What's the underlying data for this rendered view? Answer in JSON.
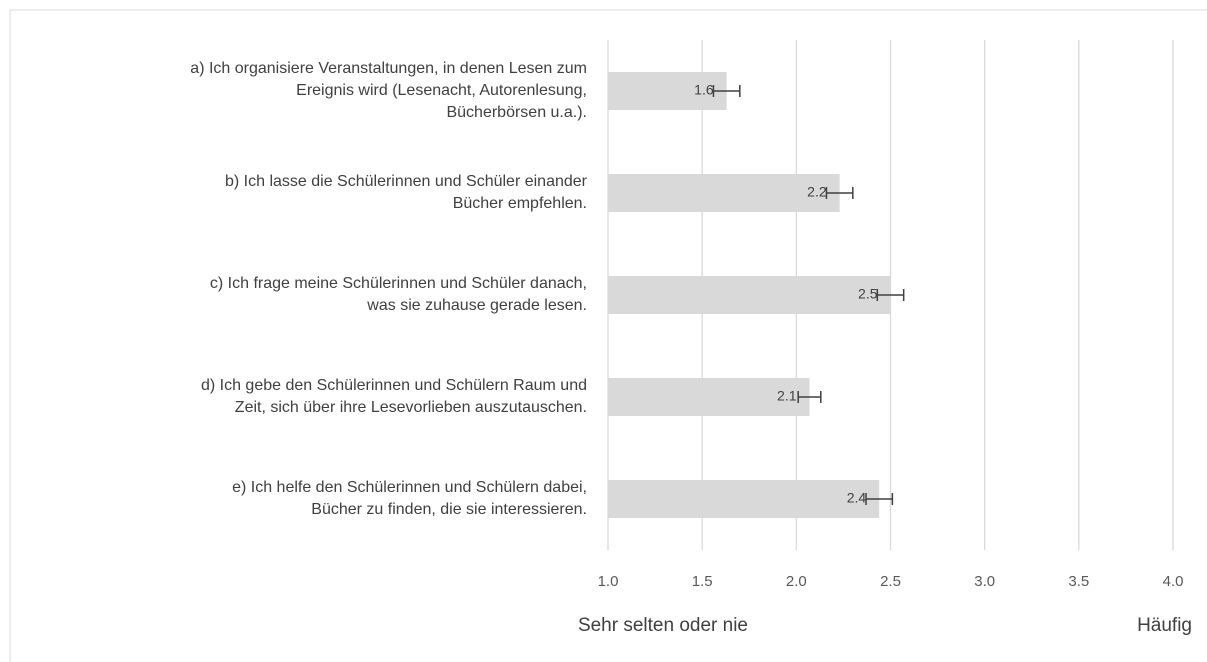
{
  "chart_data": {
    "type": "bar",
    "orientation": "horizontal",
    "categories": [
      "a) Ich organisiere Veranstaltungen, in denen Lesen zum\nEreignis wird (Lesenacht, Autorenlesung,\nBücherbörsen u.a.).",
      "b) Ich lasse die Schülerinnen und Schüler einander\nBücher empfehlen.",
      "c) Ich frage meine Schülerinnen und Schüler danach,\nwas sie zuhause gerade lesen.",
      "d) Ich gebe den Schülerinnen und Schülern Raum und\nZeit, sich über ihre Lesevorlieben auszutauschen.",
      "e) Ich helfe den Schülerinnen und Schülern dabei,\nBücher zu finden, die sie interessieren."
    ],
    "values": [
      1.63,
      2.23,
      2.5,
      2.07,
      2.44
    ],
    "value_labels": [
      "1.6",
      "2.2",
      "2.5",
      "2.1",
      "2.4"
    ],
    "errors": [
      0.07,
      0.07,
      0.07,
      0.06,
      0.07
    ],
    "color": "#d9d9d9",
    "xlim": [
      1.0,
      4.0
    ],
    "xticks": [
      {
        "value": 1.0,
        "label": "1.0"
      },
      {
        "value": 1.5,
        "label": "1.5"
      },
      {
        "value": 2.0,
        "label": "2.0"
      },
      {
        "value": 2.5,
        "label": "2.5"
      },
      {
        "value": 3.0,
        "label": "3.0"
      },
      {
        "value": 3.5,
        "label": "3.5"
      },
      {
        "value": 4.0,
        "label": "4.0"
      }
    ],
    "x_label_low": "Sehr selten oder nie",
    "x_label_high": "Häufig",
    "grid": true
  }
}
